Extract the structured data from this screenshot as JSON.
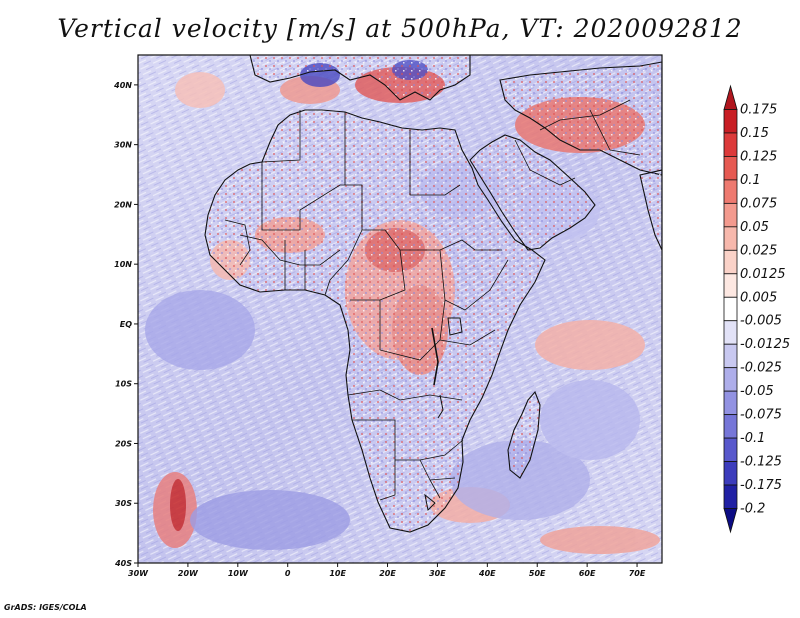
{
  "title": "Vertical velocity [m/s] at 500hPa, VT: 2020092812",
  "credit": "GrADS: IGES/COLA",
  "map": {
    "lon_range": [
      -30,
      75
    ],
    "lat_range": [
      -40,
      45
    ],
    "lon_ticks": [
      {
        "value": -30,
        "label": "30W"
      },
      {
        "value": -20,
        "label": "20W"
      },
      {
        "value": -10,
        "label": "10W"
      },
      {
        "value": 0,
        "label": "0"
      },
      {
        "value": 10,
        "label": "10E"
      },
      {
        "value": 20,
        "label": "20E"
      },
      {
        "value": 30,
        "label": "30E"
      },
      {
        "value": 40,
        "label": "40E"
      },
      {
        "value": 50,
        "label": "50E"
      },
      {
        "value": 60,
        "label": "60E"
      },
      {
        "value": 70,
        "label": "70E"
      }
    ],
    "lat_ticks": [
      {
        "value": 40,
        "label": "40N"
      },
      {
        "value": 30,
        "label": "30N"
      },
      {
        "value": 20,
        "label": "20N"
      },
      {
        "value": 10,
        "label": "10N"
      },
      {
        "value": 0,
        "label": "EQ"
      },
      {
        "value": -10,
        "label": "10S"
      },
      {
        "value": -20,
        "label": "20S"
      },
      {
        "value": -30,
        "label": "30S"
      },
      {
        "value": -40,
        "label": "40S"
      }
    ]
  },
  "colorbar": {
    "labels": [
      "0.175",
      "0.15",
      "0.125",
      "0.1",
      "0.075",
      "0.05",
      "0.025",
      "0.0125",
      "0.005",
      "-0.005",
      "-0.0125",
      "-0.025",
      "-0.05",
      "-0.075",
      "-0.1",
      "-0.125",
      "-0.175",
      "-0.2"
    ],
    "colors": [
      "#b0161e",
      "#c81e24",
      "#dc3a3a",
      "#e65a52",
      "#ee7a70",
      "#f39a8e",
      "#f7b8ac",
      "#fad2c8",
      "#fde8e2",
      "#ffffff",
      "#e2e2f7",
      "#c8c8f0",
      "#aeaeea",
      "#9292e2",
      "#7676d8",
      "#5858cc",
      "#3c3cbc",
      "#2020a4",
      "#0c0c84"
    ]
  }
}
